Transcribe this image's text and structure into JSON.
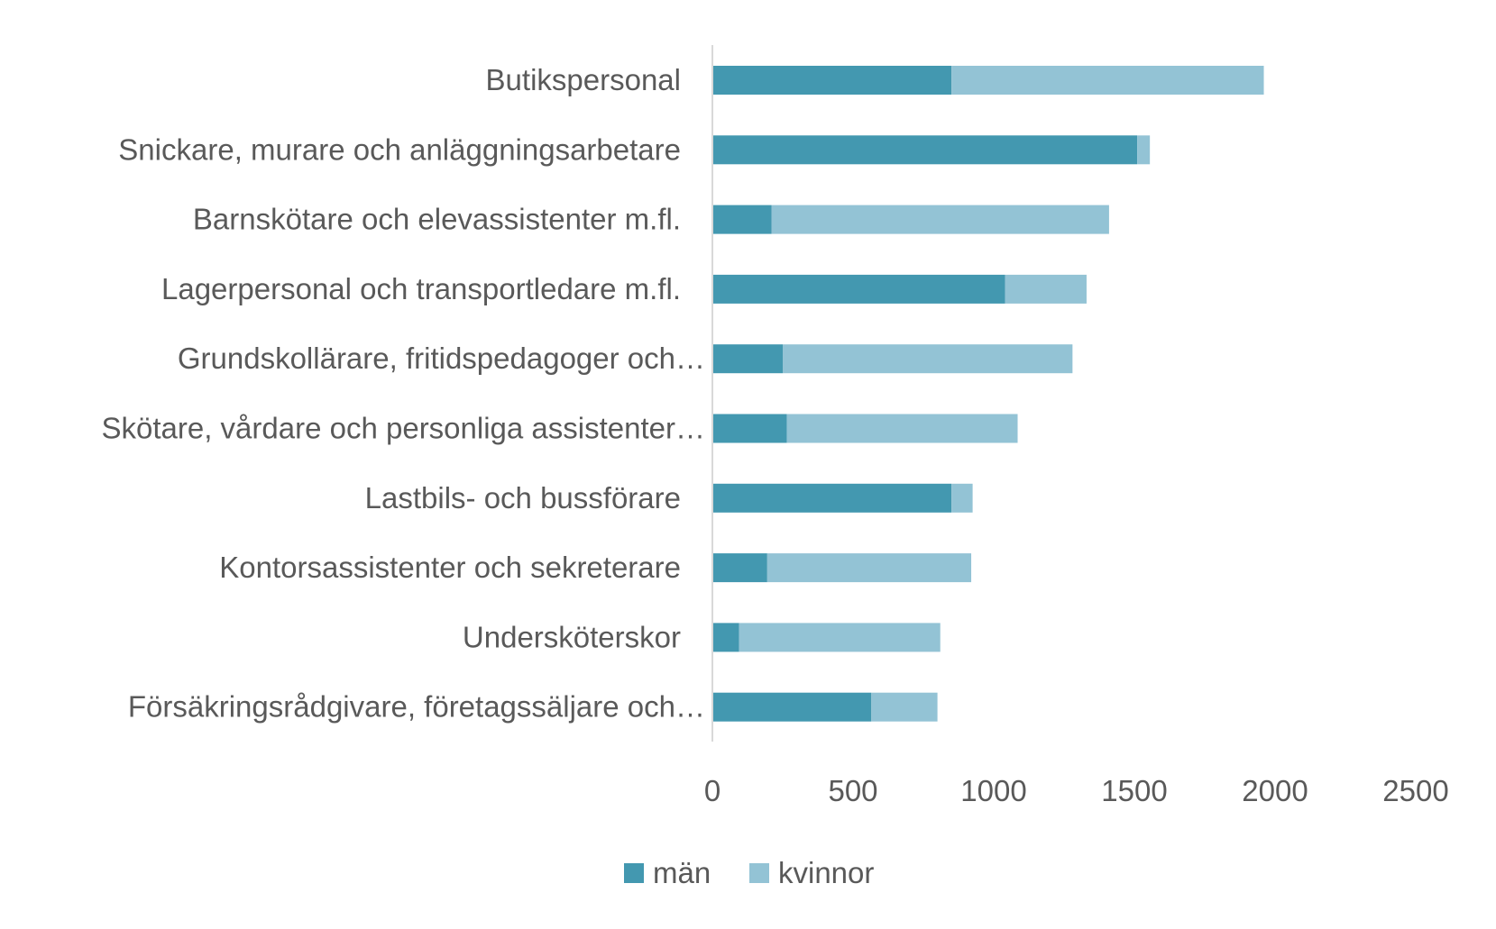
{
  "chart_data": {
    "type": "bar",
    "orientation": "horizontal",
    "stacked": true,
    "title": "",
    "xlabel": "",
    "ylabel": "",
    "xlim": [
      0,
      2500
    ],
    "x_ticks": [
      "0",
      "500",
      "1000",
      "1500",
      "2000",
      "2500"
    ],
    "grid": false,
    "legend_position": "bottom",
    "categories": [
      "Butikspersonal",
      "Snickare, murare och anläggningsarbetare",
      "Barnskötare och elevassistenter m.fl.",
      "Lagerpersonal och transportledare m.fl.",
      "Grundskollärare, fritidspedagoger och…",
      "Skötare, vårdare och personliga assistenter…",
      "Lastbils- och bussförare",
      "Kontorsassistenter och sekreterare",
      "Undersköterskor",
      "Försäkringsrådgivare, företagssäljare och…"
    ],
    "series": [
      {
        "name": "män",
        "color": "#4398b0",
        "values": [
          850,
          1510,
          210,
          1040,
          250,
          265,
          850,
          195,
          95,
          565
        ]
      },
      {
        "name": "kvinnor",
        "color": "#93c3d5",
        "values": [
          1110,
          45,
          1200,
          290,
          1030,
          820,
          75,
          725,
          715,
          235
        ]
      }
    ]
  }
}
